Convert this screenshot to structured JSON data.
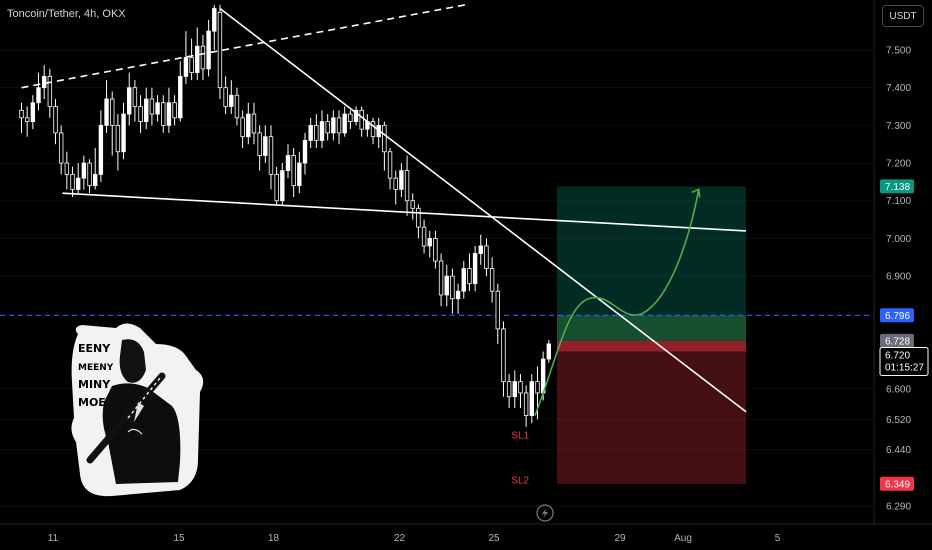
{
  "header": {
    "symbol_title": "Toncoin/Tether, 4h, OKX"
  },
  "currency_button": "USDT",
  "chart_data": {
    "type": "candlestick",
    "symbol": "Toncoin/Tether",
    "timeframe": "4h",
    "exchange": "OKX",
    "ylim": [
      6.25,
      7.62
    ],
    "y_ticks": [
      7.5,
      7.4,
      7.3,
      7.2,
      7.1,
      7.0,
      6.9,
      6.6,
      6.52,
      6.44,
      6.29
    ],
    "y_tick_labels": [
      "7.500",
      "7.400",
      "7.300",
      "7.200",
      "7.100",
      "7.000",
      "6.900",
      "6.600",
      "6.520",
      "6.440",
      "6.290"
    ],
    "x_ticks": [
      {
        "label": "11",
        "t": 1
      },
      {
        "label": "15",
        "t": 5
      },
      {
        "label": "18",
        "t": 8
      },
      {
        "label": "22",
        "t": 12
      },
      {
        "label": "25",
        "t": 15
      },
      {
        "label": "29",
        "t": 19
      },
      {
        "label": "Aug",
        "t": 21
      },
      {
        "label": "5",
        "t": 24
      }
    ],
    "candles": [
      [
        0.0,
        7.34,
        7.32,
        7.36,
        7.28
      ],
      [
        0.18,
        7.32,
        7.31,
        7.35,
        7.27
      ],
      [
        0.36,
        7.31,
        7.36,
        7.38,
        7.29
      ],
      [
        0.54,
        7.36,
        7.4,
        7.44,
        7.34
      ],
      [
        0.72,
        7.4,
        7.43,
        7.46,
        7.37
      ],
      [
        0.9,
        7.43,
        7.35,
        7.45,
        7.32
      ],
      [
        1.08,
        7.35,
        7.28,
        7.37,
        7.25
      ],
      [
        1.26,
        7.28,
        7.2,
        7.3,
        7.17
      ],
      [
        1.44,
        7.2,
        7.17,
        7.23,
        7.13
      ],
      [
        1.62,
        7.17,
        7.13,
        7.19,
        7.11
      ],
      [
        1.8,
        7.13,
        7.16,
        7.2,
        7.12
      ],
      [
        1.98,
        7.16,
        7.2,
        7.22,
        7.13
      ],
      [
        2.16,
        7.2,
        7.14,
        7.21,
        7.12
      ],
      [
        2.34,
        7.14,
        7.17,
        7.24,
        7.13
      ],
      [
        2.52,
        7.17,
        7.3,
        7.34,
        7.15
      ],
      [
        2.7,
        7.3,
        7.37,
        7.42,
        7.28
      ],
      [
        2.88,
        7.37,
        7.3,
        7.39,
        7.22
      ],
      [
        3.06,
        7.3,
        7.23,
        7.33,
        7.18
      ],
      [
        3.24,
        7.23,
        7.33,
        7.36,
        7.21
      ],
      [
        3.42,
        7.33,
        7.4,
        7.44,
        7.3
      ],
      [
        3.6,
        7.4,
        7.35,
        7.42,
        7.31
      ],
      [
        3.78,
        7.35,
        7.31,
        7.38,
        7.28
      ],
      [
        3.96,
        7.31,
        7.37,
        7.4,
        7.29
      ],
      [
        4.14,
        7.37,
        7.33,
        7.4,
        7.3
      ],
      [
        4.32,
        7.33,
        7.36,
        7.38,
        7.31
      ],
      [
        4.5,
        7.36,
        7.3,
        7.38,
        7.28
      ],
      [
        4.68,
        7.3,
        7.36,
        7.4,
        7.28
      ],
      [
        4.86,
        7.36,
        7.32,
        7.38,
        7.3
      ],
      [
        5.04,
        7.32,
        7.43,
        7.47,
        7.31
      ],
      [
        5.22,
        7.43,
        7.48,
        7.55,
        7.41
      ],
      [
        5.4,
        7.48,
        7.44,
        7.53,
        7.42
      ],
      [
        5.58,
        7.44,
        7.51,
        7.56,
        7.42
      ],
      [
        5.76,
        7.51,
        7.45,
        7.54,
        7.42
      ],
      [
        5.94,
        7.45,
        7.55,
        7.58,
        7.43
      ],
      [
        6.12,
        7.55,
        7.61,
        7.62,
        7.5
      ],
      [
        6.3,
        7.6,
        7.4,
        7.62,
        7.37
      ],
      [
        6.48,
        7.4,
        7.35,
        7.43,
        7.33
      ],
      [
        6.66,
        7.35,
        7.38,
        7.42,
        7.33
      ],
      [
        6.84,
        7.38,
        7.32,
        7.4,
        7.3
      ],
      [
        7.02,
        7.32,
        7.27,
        7.34,
        7.24
      ],
      [
        7.2,
        7.27,
        7.33,
        7.36,
        7.25
      ],
      [
        7.38,
        7.33,
        7.28,
        7.36,
        7.25
      ],
      [
        7.56,
        7.28,
        7.22,
        7.3,
        7.18
      ],
      [
        7.74,
        7.22,
        7.27,
        7.3,
        7.2
      ],
      [
        7.92,
        7.27,
        7.17,
        7.3,
        7.13
      ],
      [
        8.1,
        7.17,
        7.1,
        7.19,
        7.09
      ],
      [
        8.28,
        7.1,
        7.18,
        7.2,
        7.09
      ],
      [
        8.46,
        7.18,
        7.22,
        7.25,
        7.16
      ],
      [
        8.64,
        7.22,
        7.14,
        7.24,
        7.11
      ],
      [
        8.82,
        7.14,
        7.2,
        7.23,
        7.12
      ],
      [
        9.0,
        7.2,
        7.26,
        7.28,
        7.17
      ],
      [
        9.18,
        7.26,
        7.3,
        7.32,
        7.24
      ],
      [
        9.36,
        7.3,
        7.26,
        7.33,
        7.24
      ],
      [
        9.54,
        7.26,
        7.31,
        7.34,
        7.24
      ],
      [
        9.72,
        7.31,
        7.28,
        7.33,
        7.26
      ],
      [
        9.9,
        7.28,
        7.32,
        7.34,
        7.26
      ],
      [
        10.08,
        7.32,
        7.28,
        7.34,
        7.25
      ],
      [
        10.26,
        7.28,
        7.33,
        7.35,
        7.27
      ],
      [
        10.44,
        7.33,
        7.31,
        7.34,
        7.29
      ],
      [
        10.62,
        7.31,
        7.34,
        7.35,
        7.3
      ],
      [
        10.8,
        7.34,
        7.29,
        7.35,
        7.27
      ],
      [
        10.98,
        7.29,
        7.31,
        7.33,
        7.27
      ],
      [
        11.16,
        7.31,
        7.27,
        7.32,
        7.25
      ],
      [
        11.34,
        7.27,
        7.3,
        7.32,
        7.24
      ],
      [
        11.52,
        7.3,
        7.23,
        7.31,
        7.18
      ],
      [
        11.7,
        7.23,
        7.16,
        7.24,
        7.13
      ],
      [
        11.88,
        7.16,
        7.13,
        7.18,
        7.09
      ],
      [
        12.06,
        7.13,
        7.18,
        7.2,
        7.11
      ],
      [
        12.24,
        7.18,
        7.1,
        7.22,
        7.06
      ],
      [
        12.42,
        7.1,
        7.08,
        7.12,
        7.05
      ],
      [
        12.6,
        7.08,
        7.03,
        7.09,
        7.0
      ],
      [
        12.78,
        7.03,
        6.98,
        7.05,
        6.96
      ],
      [
        12.96,
        6.98,
        7.0,
        7.02,
        6.95
      ],
      [
        13.14,
        7.0,
        6.94,
        7.02,
        6.92
      ],
      [
        13.32,
        6.94,
        6.85,
        6.96,
        6.82
      ],
      [
        13.5,
        6.85,
        6.9,
        6.93,
        6.82
      ],
      [
        13.68,
        6.9,
        6.84,
        6.92,
        6.8
      ],
      [
        13.86,
        6.84,
        6.86,
        6.88,
        6.8
      ],
      [
        14.04,
        6.86,
        6.92,
        6.94,
        6.84
      ],
      [
        14.22,
        6.92,
        6.88,
        6.96,
        6.86
      ],
      [
        14.4,
        6.88,
        6.96,
        6.98,
        6.86
      ],
      [
        14.58,
        6.96,
        6.98,
        7.01,
        6.93
      ],
      [
        14.76,
        6.98,
        6.92,
        7.0,
        6.9
      ],
      [
        14.94,
        6.92,
        6.86,
        6.95,
        6.83
      ],
      [
        15.12,
        6.86,
        6.76,
        6.88,
        6.72
      ],
      [
        15.3,
        6.76,
        6.62,
        6.78,
        6.58
      ],
      [
        15.48,
        6.62,
        6.58,
        6.64,
        6.55
      ],
      [
        15.66,
        6.58,
        6.62,
        6.65,
        6.55
      ],
      [
        15.84,
        6.62,
        6.59,
        6.64,
        6.55
      ],
      [
        16.02,
        6.59,
        6.53,
        6.61,
        6.5
      ],
      [
        16.2,
        6.53,
        6.62,
        6.64,
        6.51
      ],
      [
        16.38,
        6.62,
        6.59,
        6.66,
        6.52
      ],
      [
        16.56,
        6.59,
        6.68,
        6.7,
        6.57
      ],
      [
        16.74,
        6.68,
        6.72,
        6.73,
        6.67
      ]
    ],
    "annotations": [
      {
        "type": "dashed-trendline",
        "label": "",
        "from": {
          "t": 0,
          "v": 7.4
        },
        "to": {
          "t": 14.1,
          "v": 7.62
        }
      },
      {
        "type": "trendline",
        "label": "",
        "from": {
          "t": 6.3,
          "v": 7.61
        },
        "to": {
          "t": 23.0,
          "v": 6.54
        }
      },
      {
        "type": "trendline",
        "label": "",
        "from": {
          "t": 1.3,
          "v": 7.12
        },
        "to": {
          "t": 23.0,
          "v": 7.02
        }
      },
      {
        "type": "horizontal-dashed",
        "value": 6.796
      },
      {
        "type": "long-position",
        "t_start": 17.0,
        "t_end": 23.0,
        "entry": 6.728,
        "target": 7.138,
        "stop": 6.349
      },
      {
        "type": "projection-arrow",
        "label": ""
      }
    ],
    "price_tags": [
      {
        "value": 7.138,
        "label": "7.138",
        "color": "#089981"
      },
      {
        "value": 6.796,
        "label": "6.796",
        "color": "#2962ff"
      },
      {
        "value": 6.728,
        "label": "6.728",
        "color": "#6a6d78"
      },
      {
        "value": 6.349,
        "label": "6.349",
        "color": "#f23645"
      }
    ],
    "current_price": {
      "label": "6.720",
      "countdown": "01:15:27"
    },
    "stop_labels": [
      {
        "text": "SL1",
        "t": 15.55,
        "v": 6.48
      },
      {
        "text": "SL2",
        "t": 15.55,
        "v": 6.36
      }
    ],
    "colors": {
      "up": "#ffffff",
      "down": "#ffffff",
      "profit": "#089981",
      "loss": "#f23645",
      "line": "#ffffff",
      "arrow": "#4caf50",
      "dashed_level": "#2962ff"
    }
  },
  "sticker": {
    "lines": [
      "EENY",
      "MEENY",
      "MINY",
      "MOE"
    ]
  },
  "bottom": {
    "replay_icon": "lightning-icon"
  }
}
